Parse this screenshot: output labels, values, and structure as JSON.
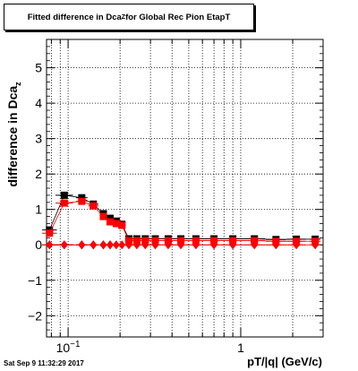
{
  "title": {
    "text": "Fitted difference in Dca",
    "sub": "Z",
    "suffix": " for Global Rec Pion EtapT"
  },
  "ylabel": {
    "text": "difference in Dca",
    "sub": "z"
  },
  "xlabel": "pT/|q| (GeV/c)",
  "timestamp": "Sat Sep  9 11:32:29 2017",
  "colors": {
    "series_black": "#000000",
    "series_red": "#ff0000",
    "grid": "#000000"
  },
  "chart_data": {
    "type": "scatter",
    "x_scale": "log",
    "xlim": [
      0.075,
      3.0
    ],
    "ylim": [
      -2.6,
      5.8
    ],
    "grid": true,
    "xticks": [
      {
        "value": 0.1,
        "label": "10",
        "sup": "-1"
      },
      {
        "value": 1,
        "label": "1",
        "sup": ""
      }
    ],
    "yticks": [
      -2,
      -1,
      0,
      1,
      2,
      3,
      4,
      5
    ],
    "series": [
      {
        "marker": "square",
        "color": "#000000",
        "points": [
          [
            0.078,
            0.42
          ],
          [
            0.095,
            1.4
          ],
          [
            0.12,
            1.33
          ],
          [
            0.14,
            1.15
          ],
          [
            0.16,
            0.88
          ],
          [
            0.175,
            0.75
          ],
          [
            0.19,
            0.67
          ],
          [
            0.205,
            0.58
          ],
          [
            0.225,
            0.17
          ],
          [
            0.25,
            0.17
          ],
          [
            0.28,
            0.17
          ],
          [
            0.32,
            0.17
          ],
          [
            0.38,
            0.17
          ],
          [
            0.45,
            0.17
          ],
          [
            0.55,
            0.17
          ],
          [
            0.7,
            0.17
          ],
          [
            0.9,
            0.17
          ],
          [
            1.2,
            0.17
          ],
          [
            1.6,
            0.15
          ],
          [
            2.1,
            0.16
          ],
          [
            2.7,
            0.16
          ]
        ]
      },
      {
        "marker": "square",
        "color": "#ff0000",
        "points": [
          [
            0.078,
            0.33
          ],
          [
            0.095,
            1.18
          ],
          [
            0.12,
            1.23
          ],
          [
            0.14,
            1.1
          ],
          [
            0.16,
            0.8
          ],
          [
            0.175,
            0.65
          ],
          [
            0.19,
            0.6
          ],
          [
            0.205,
            0.55
          ],
          [
            0.225,
            0.12
          ],
          [
            0.25,
            0.12
          ],
          [
            0.28,
            0.12
          ],
          [
            0.32,
            0.12
          ],
          [
            0.38,
            0.12
          ],
          [
            0.45,
            0.12
          ],
          [
            0.55,
            0.12
          ],
          [
            0.7,
            0.12
          ],
          [
            0.9,
            0.12
          ],
          [
            1.2,
            0.12
          ],
          [
            1.6,
            0.1
          ],
          [
            2.1,
            0.1
          ],
          [
            2.7,
            0.1
          ]
        ]
      },
      {
        "marker": "diamond",
        "color": "#000000",
        "points": [
          [
            0.078,
            0.0
          ],
          [
            0.095,
            0.0
          ],
          [
            0.12,
            0.0
          ],
          [
            0.14,
            0.0
          ],
          [
            0.16,
            0.0
          ],
          [
            0.175,
            0.0
          ]
        ]
      },
      {
        "marker": "diamond",
        "color": "#ff0000",
        "points": [
          [
            0.078,
            0.0
          ],
          [
            0.095,
            0.0
          ],
          [
            0.12,
            0.0
          ],
          [
            0.14,
            0.0
          ],
          [
            0.16,
            0.0
          ],
          [
            0.175,
            0.0
          ],
          [
            0.19,
            0.0
          ],
          [
            0.205,
            0.0
          ],
          [
            0.225,
            0.0
          ],
          [
            0.25,
            0.0
          ],
          [
            0.28,
            0.0
          ],
          [
            0.32,
            0.0
          ],
          [
            0.38,
            0.0
          ],
          [
            0.45,
            0.0
          ],
          [
            0.55,
            0.0
          ],
          [
            0.7,
            0.0
          ],
          [
            0.9,
            0.0
          ],
          [
            1.2,
            0.0
          ],
          [
            1.6,
            0.0
          ],
          [
            2.1,
            0.0
          ],
          [
            2.7,
            0.0
          ]
        ]
      }
    ]
  }
}
